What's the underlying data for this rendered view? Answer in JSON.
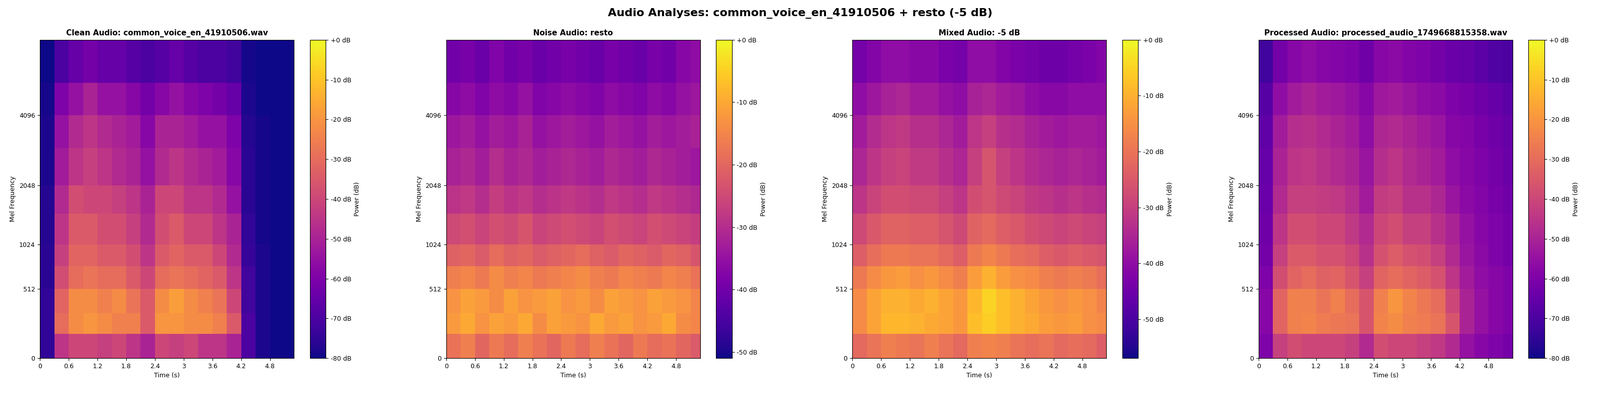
{
  "title": "Audio Analyses: common_voice_en_41910506 + resto (-5 dB)",
  "chart_data": [
    {
      "type": "heatmap",
      "title": "Clean Audio: common_voice_en_41910506.wav",
      "x_label": "Time (s)",
      "y_label": "Mel Frequency",
      "xlim": [
        0,
        5.3
      ],
      "xticks": [
        0,
        0.6,
        1.2,
        1.8,
        2.4,
        3,
        3.6,
        4.2,
        4.8
      ],
      "ylim": [
        0,
        8000
      ],
      "yticks": [
        0,
        512,
        1024,
        2048,
        4096
      ],
      "time_edges": [
        0,
        0.3,
        0.6,
        0.9,
        1.2,
        1.5,
        1.8,
        2.1,
        2.4,
        2.7,
        3.0,
        3.3,
        3.6,
        3.9,
        4.2,
        4.5,
        4.8,
        5.1,
        5.3
      ],
      "freq_edges": [
        0,
        150,
        300,
        512,
        750,
        1024,
        1500,
        2048,
        3000,
        4096,
        5500,
        8000
      ],
      "cells": [
        [
          -75,
          -45,
          -40,
          -40,
          -42,
          -40,
          -45,
          -50,
          -40,
          -42,
          -40,
          -45,
          -45,
          -50,
          -70,
          -78,
          -80,
          -80
        ],
        [
          -75,
          -30,
          -22,
          -20,
          -22,
          -25,
          -25,
          -35,
          -20,
          -20,
          -22,
          -22,
          -25,
          -35,
          -70,
          -78,
          -80,
          -80
        ],
        [
          -75,
          -32,
          -22,
          -22,
          -25,
          -22,
          -28,
          -35,
          -22,
          -18,
          -22,
          -25,
          -28,
          -40,
          -72,
          -78,
          -80,
          -80
        ],
        [
          -76,
          -38,
          -30,
          -28,
          -30,
          -30,
          -35,
          -40,
          -30,
          -28,
          -30,
          -32,
          -35,
          -45,
          -72,
          -78,
          -80,
          -80
        ],
        [
          -76,
          -42,
          -32,
          -32,
          -35,
          -35,
          -38,
          -45,
          -35,
          -32,
          -35,
          -35,
          -40,
          -48,
          -74,
          -78,
          -80,
          -80
        ],
        [
          -77,
          -45,
          -35,
          -35,
          -38,
          -38,
          -42,
          -48,
          -38,
          -35,
          -40,
          -40,
          -45,
          -50,
          -75,
          -79,
          -80,
          -80
        ],
        [
          -77,
          -48,
          -38,
          -40,
          -40,
          -42,
          -45,
          -50,
          -40,
          -40,
          -45,
          -45,
          -48,
          -55,
          -76,
          -79,
          -80,
          -80
        ],
        [
          -78,
          -52,
          -45,
          -42,
          -45,
          -48,
          -50,
          -55,
          -48,
          -45,
          -48,
          -50,
          -52,
          -58,
          -76,
          -79,
          -80,
          -80
        ],
        [
          -78,
          -55,
          -48,
          -45,
          -48,
          -50,
          -52,
          -58,
          -50,
          -50,
          -52,
          -55,
          -55,
          -60,
          -77,
          -79,
          -80,
          -80
        ],
        [
          -79,
          -60,
          -55,
          -50,
          -55,
          -55,
          -58,
          -62,
          -58,
          -55,
          -58,
          -60,
          -62,
          -65,
          -78,
          -80,
          -80,
          -80
        ],
        [
          -80,
          -70,
          -65,
          -62,
          -65,
          -65,
          -68,
          -70,
          -68,
          -65,
          -68,
          -70,
          -70,
          -72,
          -79,
          -80,
          -80,
          -80
        ]
      ],
      "colorbar": {
        "label": "Power (dB)",
        "range": [
          -80,
          0
        ],
        "ticks": [
          {
            "value": 0,
            "label": "+0 dB"
          },
          {
            "value": -10,
            "label": "-10 dB"
          },
          {
            "value": -20,
            "label": "-20 dB"
          },
          {
            "value": -30,
            "label": "-30 dB"
          },
          {
            "value": -40,
            "label": "-40 dB"
          },
          {
            "value": -50,
            "label": "-50 dB"
          },
          {
            "value": -60,
            "label": "-60 dB"
          },
          {
            "value": -70,
            "label": "-70 dB"
          },
          {
            "value": -80,
            "label": "-80 dB"
          }
        ]
      }
    },
    {
      "type": "heatmap",
      "title": "Noise Audio: resto",
      "x_label": "Time (s)",
      "y_label": "Mel Frequency",
      "xlim": [
        0,
        5.3
      ],
      "xticks": [
        0,
        0.6,
        1.2,
        1.8,
        2.4,
        3,
        3.6,
        4.2,
        4.8
      ],
      "ylim": [
        0,
        8000
      ],
      "yticks": [
        0,
        512,
        1024,
        2048,
        4096
      ],
      "time_edges": [
        0,
        0.3,
        0.6,
        0.9,
        1.2,
        1.5,
        1.8,
        2.1,
        2.4,
        2.7,
        3.0,
        3.3,
        3.6,
        3.9,
        4.2,
        4.5,
        4.8,
        5.1,
        5.3
      ],
      "freq_edges": [
        0,
        150,
        300,
        512,
        750,
        1024,
        1500,
        2048,
        3000,
        4096,
        5500,
        8000
      ],
      "cells": [
        [
          -18,
          -16,
          -20,
          -17,
          -19,
          -16,
          -18,
          -20,
          -17,
          -19,
          -16,
          -18,
          -20,
          -17,
          -19,
          -18,
          -20,
          -22
        ],
        [
          -12,
          -10,
          -13,
          -11,
          -12,
          -10,
          -14,
          -11,
          -12,
          -13,
          -10,
          -12,
          -11,
          -13,
          -12,
          -10,
          -14,
          -15
        ],
        [
          -13,
          -11,
          -12,
          -14,
          -11,
          -13,
          -12,
          -11,
          -13,
          -12,
          -14,
          -11,
          -12,
          -13,
          -11,
          -12,
          -13,
          -15
        ],
        [
          -16,
          -15,
          -17,
          -14,
          -16,
          -15,
          -17,
          -16,
          -15,
          -14,
          -16,
          -17,
          -15,
          -16,
          -17,
          -15,
          -16,
          -18
        ],
        [
          -21,
          -20,
          -22,
          -19,
          -21,
          -20,
          -22,
          -21,
          -20,
          -19,
          -21,
          -22,
          -20,
          -21,
          -22,
          -20,
          -21,
          -23
        ],
        [
          -25,
          -24,
          -26,
          -24,
          -25,
          -23,
          -26,
          -25,
          -24,
          -25,
          -26,
          -24,
          -25,
          -26,
          -24,
          -25,
          -26,
          -27
        ],
        [
          -29,
          -28,
          -30,
          -27,
          -29,
          -28,
          -30,
          -29,
          -28,
          -29,
          -30,
          -28,
          -29,
          -30,
          -28,
          -29,
          -30,
          -31
        ],
        [
          -32,
          -31,
          -33,
          -30,
          -32,
          -31,
          -33,
          -32,
          -31,
          -32,
          -33,
          -31,
          -32,
          -33,
          -31,
          -32,
          -33,
          -34
        ],
        [
          -34,
          -33,
          -35,
          -33,
          -34,
          -32,
          -35,
          -34,
          -33,
          -34,
          -35,
          -33,
          -34,
          -35,
          -33,
          -34,
          -33,
          -32
        ],
        [
          -37,
          -36,
          -38,
          -36,
          -37,
          -35,
          -38,
          -37,
          -36,
          -37,
          -38,
          -36,
          -37,
          -38,
          -36,
          -37,
          -35,
          -34
        ],
        [
          -40,
          -39,
          -41,
          -38,
          -40,
          -39,
          -41,
          -40,
          -39,
          -40,
          -41,
          -39,
          -40,
          -41,
          -39,
          -40,
          -37,
          -36
        ]
      ],
      "colorbar": {
        "label": "Power (dB)",
        "range": [
          -51,
          0
        ],
        "ticks": [
          {
            "value": 0,
            "label": "+0 dB"
          },
          {
            "value": -10,
            "label": "-10 dB"
          },
          {
            "value": -20,
            "label": "-20 dB"
          },
          {
            "value": -30,
            "label": "-30 dB"
          },
          {
            "value": -40,
            "label": "-40 dB"
          },
          {
            "value": -50,
            "label": "-50 dB"
          }
        ]
      }
    },
    {
      "type": "heatmap",
      "title": "Mixed Audio: -5 dB",
      "x_label": "Time (s)",
      "y_label": "Mel Frequency",
      "xlim": [
        0,
        5.3
      ],
      "xticks": [
        0,
        0.6,
        1.2,
        1.8,
        2.4,
        3,
        3.6,
        4.2,
        4.8
      ],
      "ylim": [
        0,
        8000
      ],
      "yticks": [
        0,
        512,
        1024,
        2048,
        4096
      ],
      "time_edges": [
        0,
        0.3,
        0.6,
        0.9,
        1.2,
        1.5,
        1.8,
        2.1,
        2.4,
        2.7,
        3.0,
        3.3,
        3.6,
        3.9,
        4.2,
        4.5,
        4.8,
        5.1,
        5.3
      ],
      "freq_edges": [
        0,
        150,
        300,
        512,
        750,
        1024,
        1500,
        2048,
        3000,
        4096,
        5500,
        8000
      ],
      "cells": [
        [
          -22,
          -20,
          -18,
          -19,
          -20,
          -18,
          -20,
          -22,
          -18,
          -17,
          -18,
          -20,
          -21,
          -20,
          -22,
          -21,
          -22,
          -24
        ],
        [
          -16,
          -12,
          -9,
          -9,
          -10,
          -11,
          -12,
          -14,
          -8,
          -6,
          -8,
          -10,
          -11,
          -13,
          -14,
          -13,
          -15,
          -16
        ],
        [
          -16,
          -12,
          -10,
          -10,
          -11,
          -10,
          -12,
          -14,
          -9,
          -5,
          -8,
          -10,
          -12,
          -14,
          -15,
          -14,
          -15,
          -17
        ],
        [
          -19,
          -16,
          -14,
          -13,
          -15,
          -14,
          -16,
          -18,
          -13,
          -10,
          -13,
          -15,
          -16,
          -18,
          -19,
          -18,
          -19,
          -21
        ],
        [
          -24,
          -21,
          -19,
          -19,
          -20,
          -20,
          -22,
          -24,
          -19,
          -17,
          -19,
          -21,
          -22,
          -24,
          -25,
          -24,
          -25,
          -26
        ],
        [
          -28,
          -25,
          -23,
          -23,
          -24,
          -24,
          -26,
          -28,
          -23,
          -22,
          -24,
          -25,
          -27,
          -28,
          -29,
          -28,
          -29,
          -30
        ],
        [
          -32,
          -29,
          -27,
          -27,
          -28,
          -28,
          -30,
          -32,
          -27,
          -26,
          -28,
          -29,
          -31,
          -32,
          -33,
          -32,
          -33,
          -34
        ],
        [
          -35,
          -32,
          -30,
          -29,
          -31,
          -31,
          -33,
          -35,
          -30,
          -26,
          -30,
          -32,
          -34,
          -35,
          -36,
          -35,
          -36,
          -37
        ],
        [
          -37,
          -34,
          -32,
          -31,
          -33,
          -33,
          -35,
          -37,
          -32,
          -30,
          -33,
          -34,
          -36,
          -37,
          -38,
          -37,
          -37,
          -38
        ],
        [
          -40,
          -38,
          -36,
          -35,
          -37,
          -37,
          -39,
          -40,
          -36,
          -35,
          -37,
          -38,
          -40,
          -41,
          -41,
          -40,
          -40,
          -40
        ],
        [
          -44,
          -42,
          -40,
          -40,
          -41,
          -41,
          -43,
          -44,
          -40,
          -40,
          -42,
          -43,
          -44,
          -45,
          -45,
          -44,
          -43,
          -42
        ]
      ],
      "colorbar": {
        "label": "Power (dB)",
        "range": [
          -57,
          0
        ],
        "ticks": [
          {
            "value": 0,
            "label": "+0 dB"
          },
          {
            "value": -10,
            "label": "-10 dB"
          },
          {
            "value": -20,
            "label": "-20 dB"
          },
          {
            "value": -30,
            "label": "-30 dB"
          },
          {
            "value": -40,
            "label": "-40 dB"
          },
          {
            "value": -50,
            "label": "-50 dB"
          }
        ]
      }
    },
    {
      "type": "heatmap",
      "title": "Processed Audio: processed_audio_1749668815358.wav",
      "x_label": "Time (s)",
      "y_label": "Mel Frequency",
      "xlim": [
        0,
        5.3
      ],
      "xticks": [
        0,
        0.6,
        1.2,
        1.8,
        2.4,
        3,
        3.6,
        4.2,
        4.8
      ],
      "ylim": [
        0,
        8000
      ],
      "yticks": [
        0,
        512,
        1024,
        2048,
        4096
      ],
      "time_edges": [
        0,
        0.3,
        0.6,
        0.9,
        1.2,
        1.5,
        1.8,
        2.1,
        2.4,
        2.7,
        3.0,
        3.3,
        3.6,
        3.9,
        4.2,
        4.5,
        4.8,
        5.1,
        5.3
      ],
      "freq_edges": [
        0,
        150,
        300,
        512,
        750,
        1024,
        1500,
        2048,
        3000,
        4096,
        5500,
        8000
      ],
      "cells": [
        [
          -60,
          -42,
          -38,
          -40,
          -40,
          -40,
          -42,
          -48,
          -38,
          -40,
          -40,
          -42,
          -44,
          -48,
          -55,
          -58,
          -60,
          -62
        ],
        [
          -58,
          -32,
          -25,
          -24,
          -26,
          -27,
          -28,
          -36,
          -24,
          -22,
          -25,
          -26,
          -28,
          -36,
          -50,
          -55,
          -58,
          -60
        ],
        [
          -58,
          -32,
          -25,
          -25,
          -28,
          -25,
          -30,
          -36,
          -25,
          -20,
          -24,
          -27,
          -30,
          -40,
          -50,
          -55,
          -58,
          -60
        ],
        [
          -60,
          -38,
          -32,
          -30,
          -33,
          -32,
          -36,
          -42,
          -32,
          -30,
          -32,
          -34,
          -37,
          -45,
          -52,
          -56,
          -58,
          -60
        ],
        [
          -62,
          -42,
          -35,
          -35,
          -37,
          -37,
          -40,
          -46,
          -37,
          -34,
          -37,
          -38,
          -42,
          -48,
          -54,
          -57,
          -60,
          -62
        ],
        [
          -63,
          -45,
          -38,
          -38,
          -40,
          -40,
          -44,
          -48,
          -40,
          -38,
          -42,
          -42,
          -46,
          -50,
          -55,
          -58,
          -60,
          -62
        ],
        [
          -64,
          -48,
          -42,
          -42,
          -43,
          -44,
          -47,
          -52,
          -43,
          -42,
          -46,
          -46,
          -49,
          -54,
          -57,
          -59,
          -61,
          -63
        ],
        [
          -65,
          -50,
          -45,
          -44,
          -46,
          -48,
          -50,
          -54,
          -47,
          -45,
          -48,
          -50,
          -52,
          -56,
          -58,
          -60,
          -62,
          -64
        ],
        [
          -66,
          -52,
          -47,
          -46,
          -48,
          -50,
          -52,
          -56,
          -49,
          -48,
          -50,
          -52,
          -54,
          -58,
          -59,
          -61,
          -63,
          -65
        ],
        [
          -68,
          -56,
          -52,
          -50,
          -52,
          -53,
          -55,
          -58,
          -53,
          -52,
          -54,
          -56,
          -57,
          -60,
          -61,
          -63,
          -65,
          -67
        ],
        [
          -72,
          -62,
          -58,
          -56,
          -58,
          -59,
          -60,
          -63,
          -58,
          -57,
          -59,
          -60,
          -62,
          -64,
          -65,
          -67,
          -69,
          -70
        ]
      ],
      "colorbar": {
        "label": "Power (dB)",
        "range": [
          -80,
          0
        ],
        "ticks": [
          {
            "value": 0,
            "label": "+0 dB"
          },
          {
            "value": -10,
            "label": "-10 dB"
          },
          {
            "value": -20,
            "label": "-20 dB"
          },
          {
            "value": -30,
            "label": "-30 dB"
          },
          {
            "value": -40,
            "label": "-40 dB"
          },
          {
            "value": -50,
            "label": "-50 dB"
          },
          {
            "value": -60,
            "label": "-60 dB"
          },
          {
            "value": -70,
            "label": "-70 dB"
          },
          {
            "value": -80,
            "label": "-80 dB"
          }
        ]
      }
    }
  ]
}
